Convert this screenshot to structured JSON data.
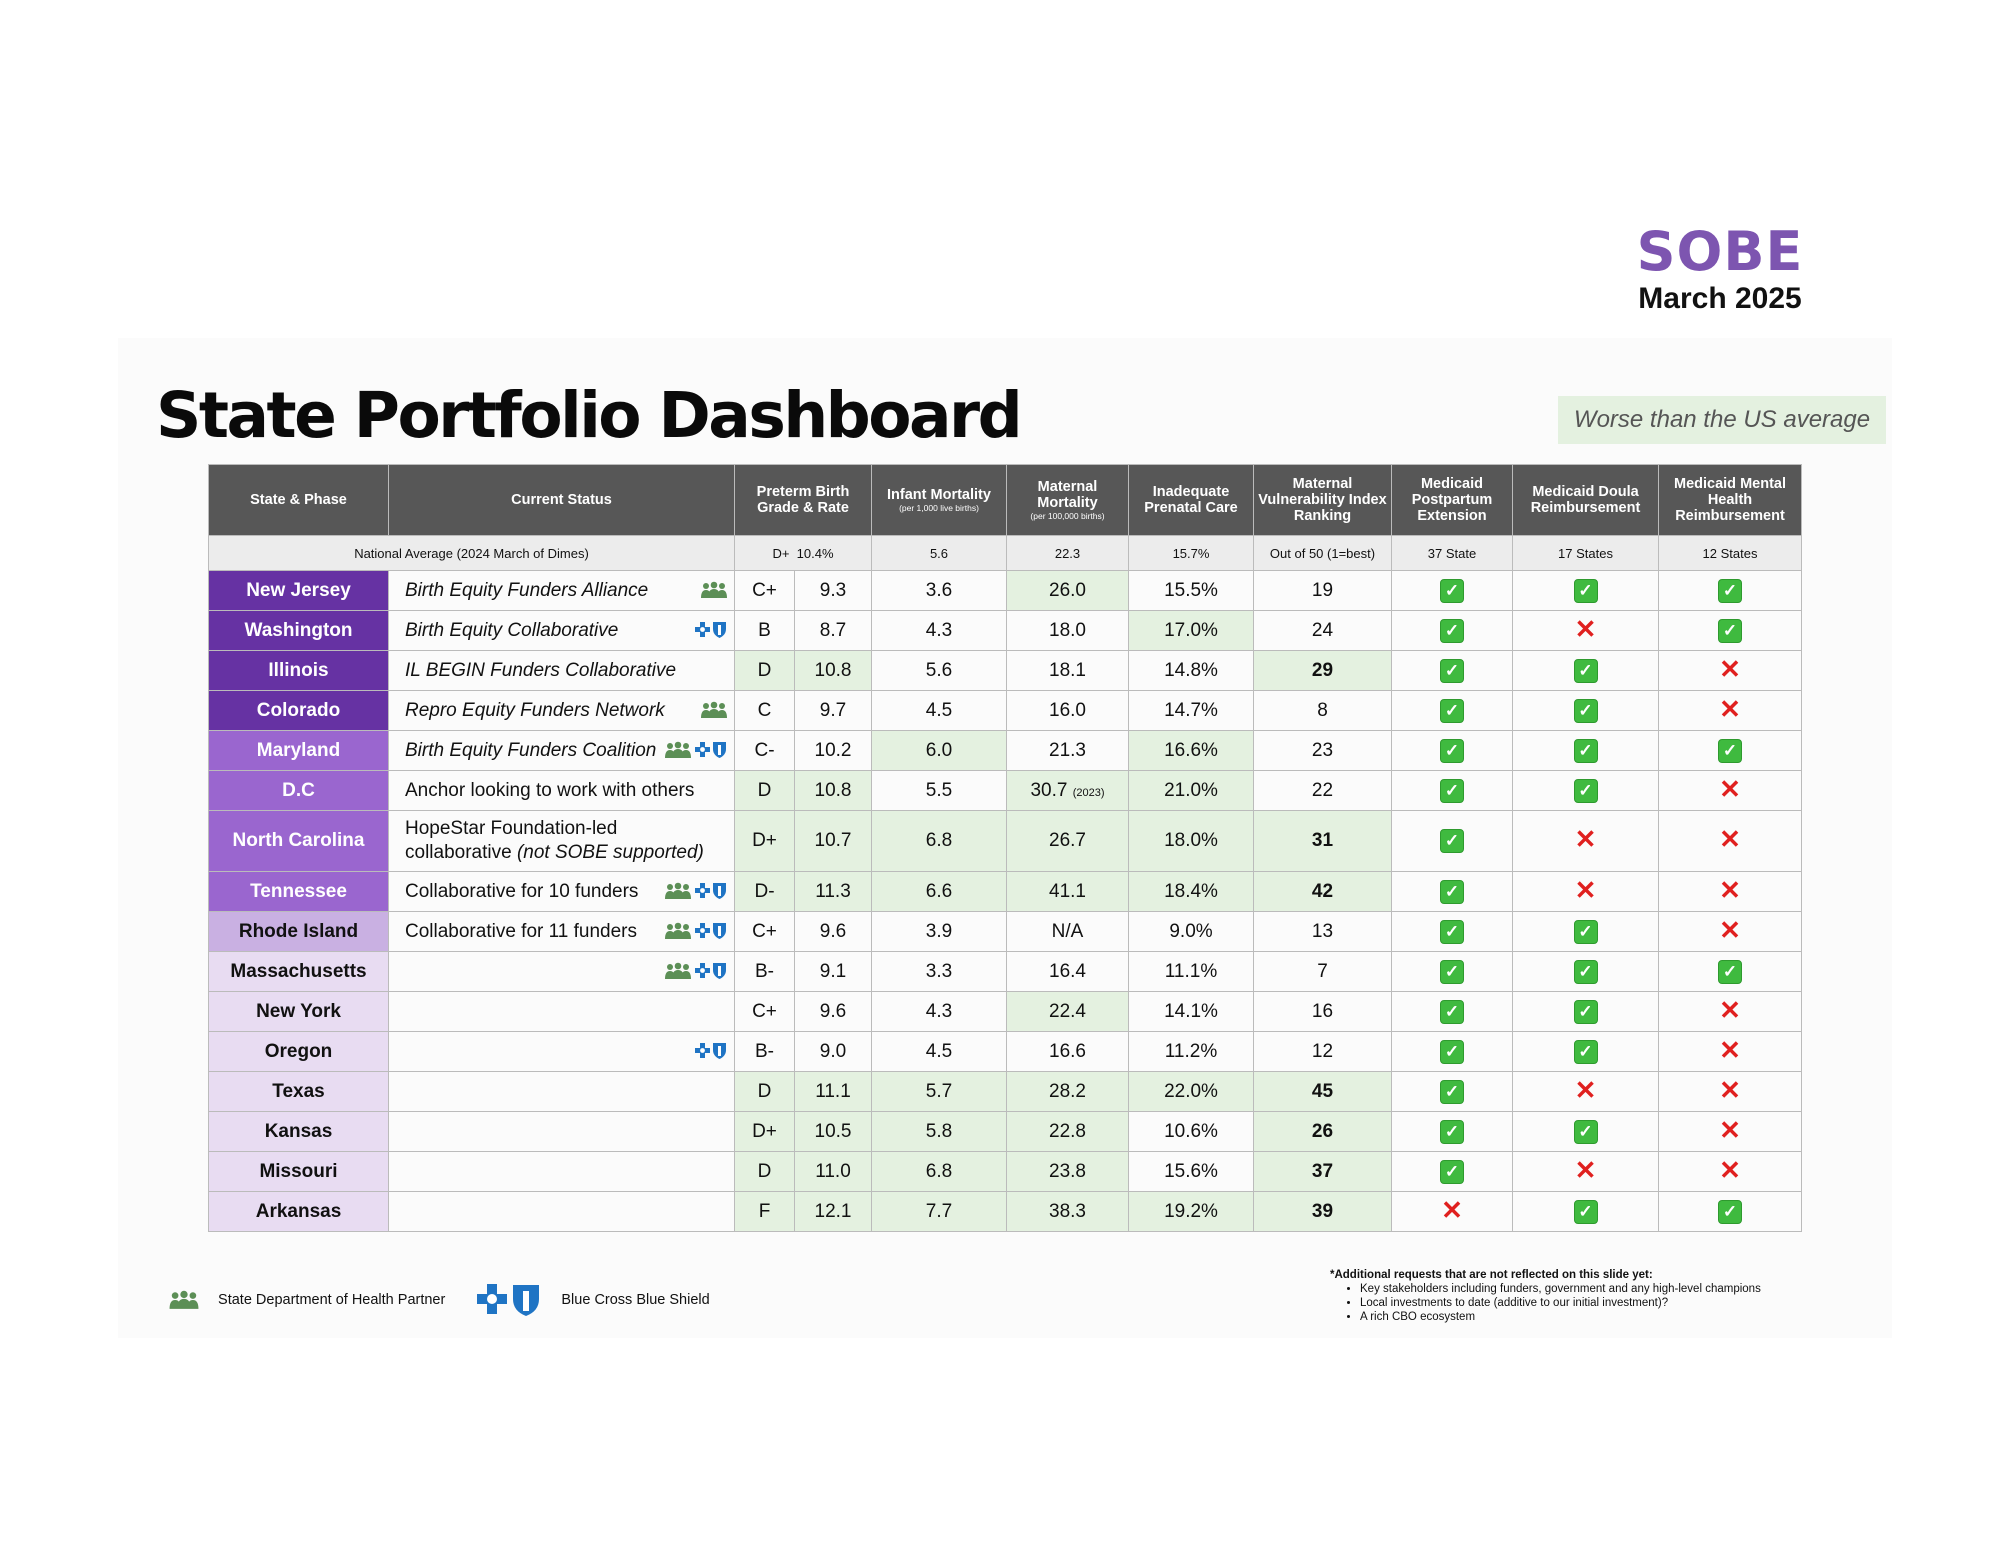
{
  "brand": {
    "org": "SOBE",
    "date": "March 2025"
  },
  "title": "State Portfolio Dashboard",
  "legend_box": "Worse than the US average",
  "colors": {
    "phase1": "#6632a3",
    "phase2": "#9a66cf",
    "phase3": "#c9b0e2",
    "phase4": "#e8dcf2",
    "worse_highlight": "#e4f1e0",
    "header_bg": "#575757"
  },
  "headers": {
    "state": "State & Phase",
    "status": "Current Status",
    "preterm": "Preterm Birth Grade & Rate",
    "infant": "Infant Mortality",
    "infant_sub": "(per 1,000 live births)",
    "maternal": "Maternal Mortality",
    "maternal_sub": "(per 100,000 births)",
    "prenatal": "Inadequate Prenatal Care",
    "mvi": "Maternal Vulnerability Index Ranking",
    "postpartum": "Medicaid Postpartum Extension",
    "doula": "Medicaid Doula Reimbursement",
    "mental": "Medicaid Mental Health Reimbursement"
  },
  "national_average": {
    "label": "National Average (2024 March of Dimes)",
    "grade": "D+",
    "rate": "10.4%",
    "infant": "5.6",
    "maternal": "22.3",
    "prenatal": "15.7%",
    "mvi": "Out of 50 (1=best)",
    "postpartum": "37 State",
    "doula": "17 States",
    "mental": "12 States"
  },
  "rows": [
    {
      "state": "New Jersey",
      "status": "Birth Equity Funders Alliance",
      "grade": "C+",
      "rate": "9.3",
      "infant": "3.6",
      "maternal": "26.0",
      "prenatal": "15.5%",
      "mvi": "19",
      "postpartum": "yes",
      "doula": "yes",
      "mental": "yes"
    },
    {
      "state": "Washington",
      "status": "Birth Equity Collaborative",
      "grade": "B",
      "rate": "8.7",
      "infant": "4.3",
      "maternal": "18.0",
      "prenatal": "17.0%",
      "mvi": "24",
      "postpartum": "yes",
      "doula": "no",
      "mental": "yes"
    },
    {
      "state": "Illinois",
      "status": "IL BEGIN Funders Collaborative",
      "grade": "D",
      "rate": "10.8",
      "infant": "5.6",
      "maternal": "18.1",
      "prenatal": "14.8%",
      "mvi": "29",
      "postpartum": "yes",
      "doula": "yes",
      "mental": "no"
    },
    {
      "state": "Colorado",
      "status": "Repro Equity Funders Network",
      "grade": "C",
      "rate": "9.7",
      "infant": "4.5",
      "maternal": "16.0",
      "prenatal": "14.7%",
      "mvi": "8",
      "postpartum": "yes",
      "doula": "yes",
      "mental": "no"
    },
    {
      "state": "Maryland",
      "status": "Birth Equity Funders Coalition",
      "grade": "C-",
      "rate": "10.2",
      "infant": "6.0",
      "maternal": "21.3",
      "prenatal": "16.6%",
      "mvi": "23",
      "postpartum": "yes",
      "doula": "yes",
      "mental": "yes"
    },
    {
      "state": "D.C",
      "status": "Anchor looking to work with others",
      "grade": "D",
      "rate": "10.8",
      "infant": "5.5",
      "maternal": "30.7",
      "maternal_note": "(2023)",
      "prenatal": "21.0%",
      "mvi": "22",
      "postpartum": "yes",
      "doula": "yes",
      "mental": "no"
    },
    {
      "state": "North Carolina",
      "status": "HopeStar Foundation-led",
      "status_line2a": "collaborative ",
      "status_line2b": "(not SOBE supported)",
      "grade": "D+",
      "rate": "10.7",
      "infant": "6.8",
      "maternal": "26.7",
      "prenatal": "18.0%",
      "mvi": "31",
      "postpartum": "yes",
      "doula": "no",
      "mental": "no"
    },
    {
      "state": "Tennessee",
      "status": "Collaborative for 10 funders",
      "grade": "D-",
      "rate": "11.3",
      "infant": "6.6",
      "maternal": "41.1",
      "prenatal": "18.4%",
      "mvi": "42",
      "postpartum": "yes",
      "doula": "no",
      "mental": "no"
    },
    {
      "state": "Rhode Island",
      "status": "Collaborative for 11 funders",
      "grade": "C+",
      "rate": "9.6",
      "infant": "3.9",
      "maternal": "N/A",
      "prenatal": "9.0%",
      "mvi": "13",
      "postpartum": "yes",
      "doula": "yes",
      "mental": "no"
    },
    {
      "state": "Massachusetts",
      "status": "",
      "grade": "B-",
      "rate": "9.1",
      "infant": "3.3",
      "maternal": "16.4",
      "prenatal": "11.1%",
      "mvi": "7",
      "postpartum": "yes",
      "doula": "yes",
      "mental": "yes"
    },
    {
      "state": "New York",
      "status": "",
      "grade": "C+",
      "rate": "9.6",
      "infant": "4.3",
      "maternal": "22.4",
      "prenatal": "14.1%",
      "mvi": "16",
      "postpartum": "yes",
      "doula": "yes",
      "mental": "no"
    },
    {
      "state": "Oregon",
      "status": "",
      "grade": "B-",
      "rate": "9.0",
      "infant": "4.5",
      "maternal": "16.6",
      "prenatal": "11.2%",
      "mvi": "12",
      "postpartum": "yes",
      "doula": "yes",
      "mental": "no"
    },
    {
      "state": "Texas",
      "status": "",
      "grade": "D",
      "rate": "11.1",
      "infant": "5.7",
      "maternal": "28.2",
      "prenatal": "22.0%",
      "mvi": "45",
      "postpartum": "yes",
      "doula": "no",
      "mental": "no"
    },
    {
      "state": "Kansas",
      "status": "",
      "grade": "D+",
      "rate": "10.5",
      "infant": "5.8",
      "maternal": "22.8",
      "prenatal": "10.6%",
      "mvi": "26",
      "postpartum": "yes",
      "doula": "yes",
      "mental": "no"
    },
    {
      "state": "Missouri",
      "status": "",
      "grade": "D",
      "rate": "11.0",
      "infant": "6.8",
      "maternal": "23.8",
      "prenatal": "15.6%",
      "mvi": "37",
      "postpartum": "yes",
      "doula": "no",
      "mental": "no"
    },
    {
      "state": "Arkansas",
      "status": "",
      "grade": "F",
      "rate": "12.1",
      "infant": "7.7",
      "maternal": "38.3",
      "prenatal": "19.2%",
      "mvi": "39",
      "postpartum": "no",
      "doula": "yes",
      "mental": "yes"
    }
  ],
  "legend": {
    "health_partner": "State Department of Health Partner",
    "bcbs": "Blue Cross Blue Shield"
  },
  "notes": {
    "heading": "*Additional requests that are not reflected on this slide yet:",
    "items": [
      "Key stakeholders including funders, government and any high-level champions",
      "Local investments to date (additive to our initial investment)?",
      "A rich CBO ecosystem"
    ]
  },
  "symbols": {
    "yes": "✓",
    "no": "✕"
  },
  "icons": {
    "health_partner": "people-group-icon",
    "bcbs": "blue-cross-blue-shield-icon"
  }
}
